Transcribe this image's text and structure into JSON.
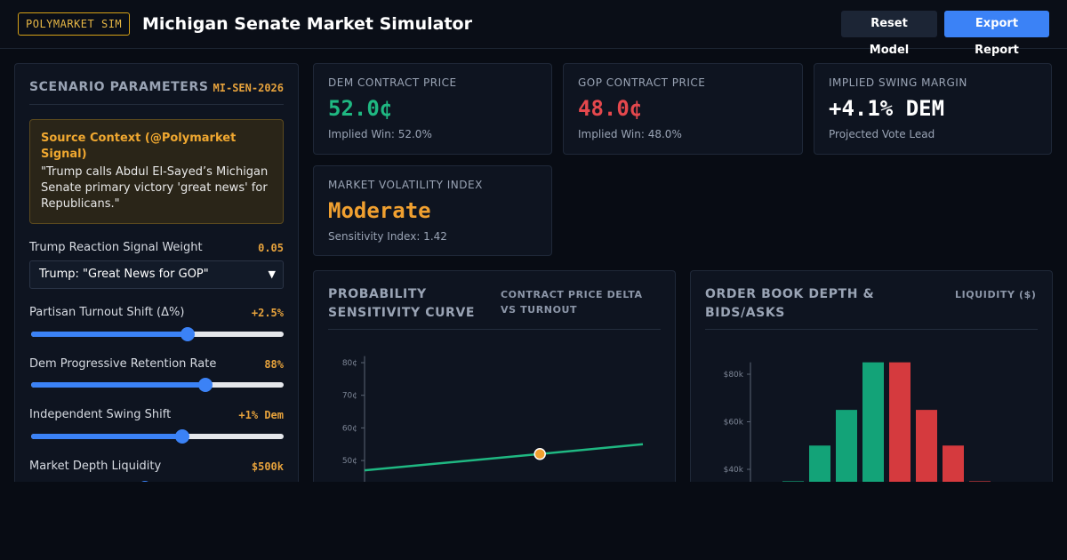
{
  "header": {
    "brand": "POLYMARKET SIM",
    "title": "Michigan Senate Market Simulator",
    "reset_label": "Reset Model",
    "export_label": "Export Report"
  },
  "params": {
    "title": "SCENARIO PARAMETERS",
    "tag": "MI-SEN-2026",
    "context": {
      "title": "Source Context (@Polymarket Signal)",
      "quote": "\"Trump calls Abdul El-Sayed’s Michigan Senate primary victory 'great news' for Republicans.\""
    },
    "signal_weight": {
      "label": "Trump Reaction Signal Weight",
      "value": "0.05"
    },
    "signal_select": {
      "selected": "Trump: \"Great News for GOP\""
    },
    "sliders": [
      {
        "label": "Partisan Turnout Shift (Δ%)",
        "value": "+2.5%",
        "fraction": 0.62
      },
      {
        "label": "Dem Progressive Retention Rate",
        "value": "88%",
        "fraction": 0.69
      },
      {
        "label": "Independent Swing Shift",
        "value": "+1% Dem",
        "fraction": 0.6
      },
      {
        "label": "Market Depth Liquidity",
        "value": "$500k",
        "fraction": 0.45
      }
    ]
  },
  "stats": {
    "dem": {
      "label": "DEM CONTRACT PRICE",
      "value": "52.0¢",
      "sub": "Implied Win: 52.0%",
      "color": "#1fb882"
    },
    "gop": {
      "label": "GOP CONTRACT PRICE",
      "value": "48.0¢",
      "sub": "Implied Win: 48.0%",
      "color": "#e5484d"
    },
    "swing": {
      "label": "IMPLIED SWING MARGIN",
      "value": "+4.1% DEM",
      "sub": "Projected Vote Lead",
      "color": "#ffffff"
    },
    "volatility": {
      "label": "MARKET VOLATILITY INDEX",
      "value": "Moderate",
      "sub": "Sensitivity Index: 1.42",
      "color": "#f0a030"
    }
  },
  "charts": {
    "probability": {
      "title": "PROBABILITY SENSITIVITY CURVE",
      "subtitle": "CONTRACT PRICE DELTA VS TURNOUT"
    },
    "orderbook": {
      "title": "ORDER BOOK DEPTH & BIDS/ASKS",
      "subtitle": "LIQUIDITY ($)"
    }
  },
  "chart_data": [
    {
      "type": "line",
      "title": "PROBABILITY SENSITIVITY CURVE",
      "subtitle": "CONTRACT PRICE DELTA VS TURNOUT",
      "yticks": [
        "50¢",
        "60¢",
        "70¢",
        "80¢"
      ],
      "ylim": [
        40,
        80
      ],
      "x": [
        0,
        0.63,
        1
      ],
      "values": [
        47,
        52,
        55
      ],
      "marker": {
        "x": 0.63,
        "y": 52
      },
      "line_color": "#1fb882",
      "marker_color": "#f0a030"
    },
    {
      "type": "bar",
      "title": "ORDER BOOK DEPTH & BIDS/ASKS",
      "subtitle": "LIQUIDITY ($)",
      "yticks": [
        "$40k",
        "$60k",
        "$80k"
      ],
      "ylim": [
        20,
        85
      ],
      "series": [
        {
          "name": "",
          "values": [
            35,
            50,
            65,
            85,
            null,
            null,
            null,
            null
          ],
          "color": "#13a378"
        },
        {
          "name": "",
          "values": [
            null,
            null,
            null,
            null,
            85,
            65,
            50,
            35
          ],
          "color": "#d53a3e"
        }
      ]
    }
  ]
}
